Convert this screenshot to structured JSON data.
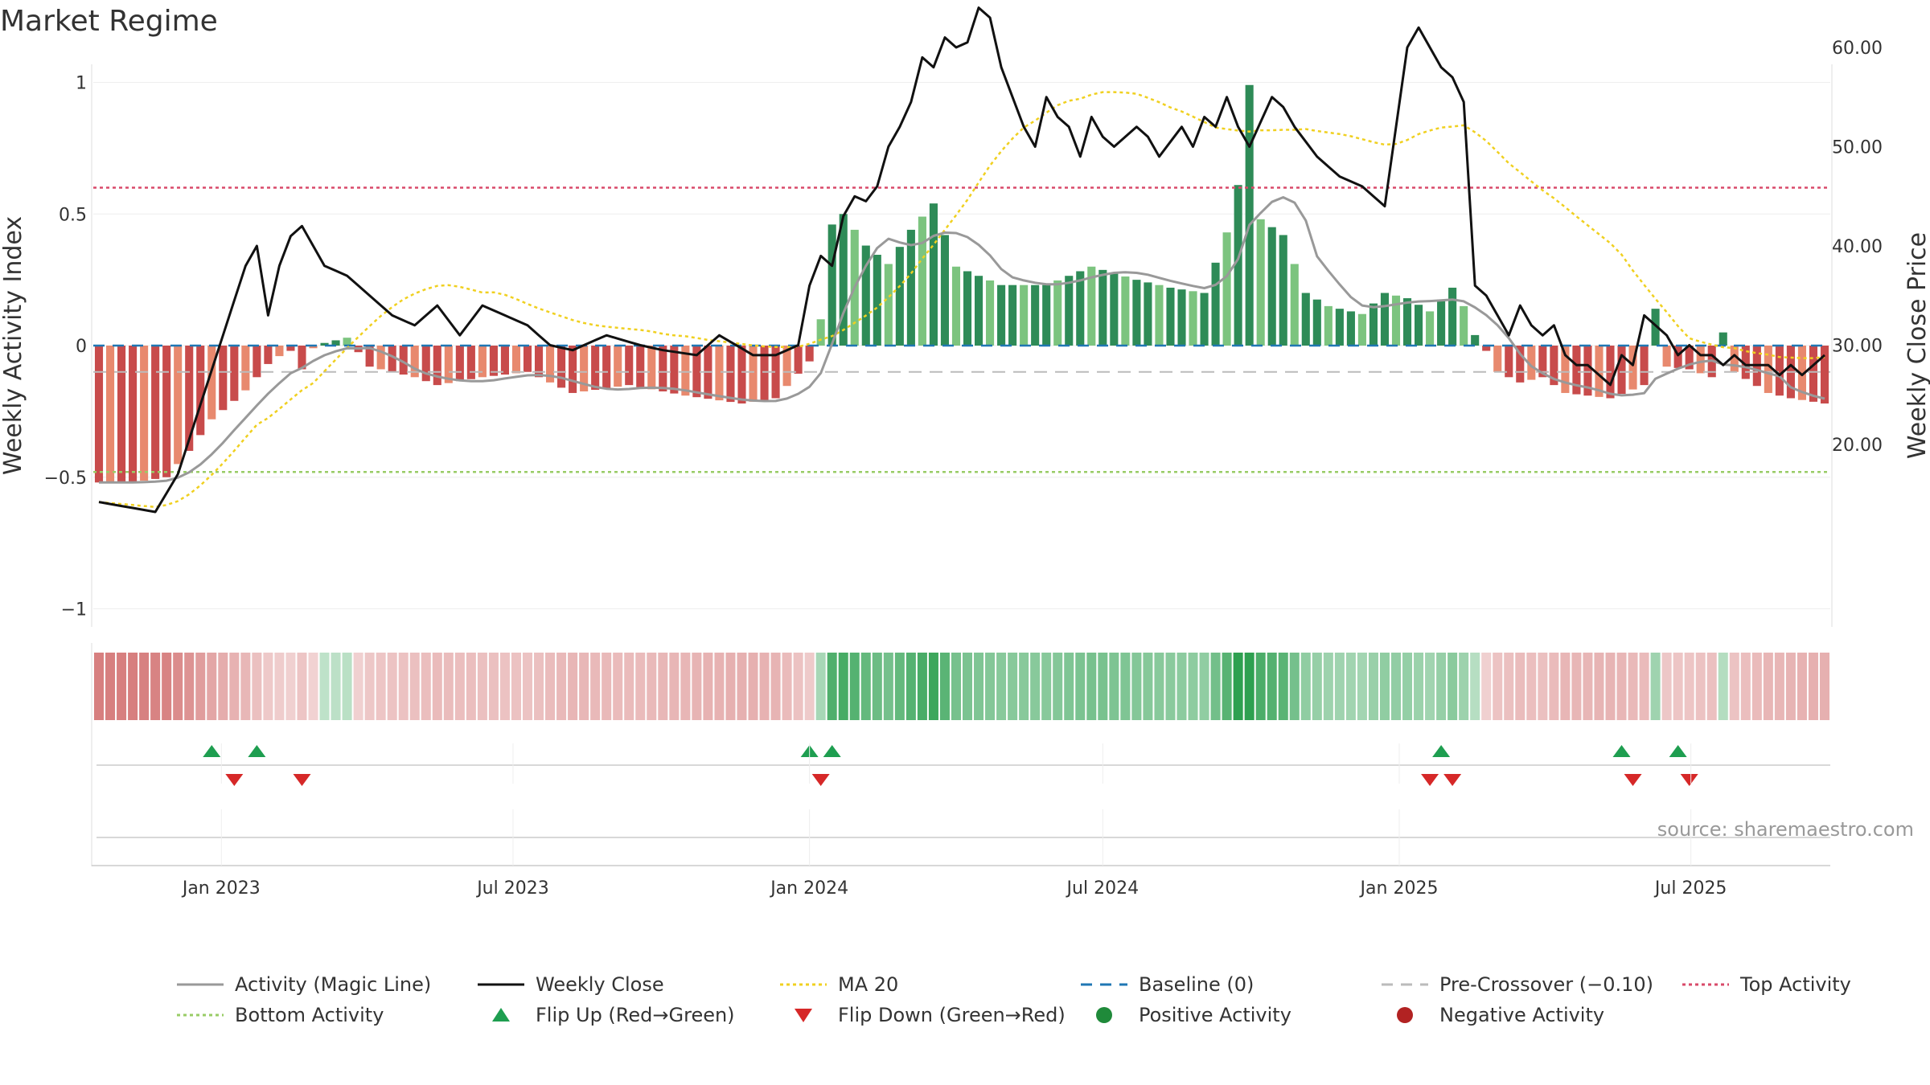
{
  "title": "Market Regime",
  "source": "source: sharemaestro.com",
  "colors": {
    "red_strong": "#c84b4b",
    "red_light": "#e8896e",
    "green_strong": "#2e8b57",
    "green_light": "#7cc47f",
    "magic_line": "#999999",
    "close": "#111111",
    "ma20": "#f0d020",
    "baseline": "#1f77b4",
    "precross": "#bbbbbb",
    "top": "#d94a6a",
    "bottom": "#99cc66",
    "flip_up": "#1e9e50",
    "flip_down": "#d62828"
  },
  "chart_data": {
    "type": "bar",
    "y_left_label": "Weekly Activity Index",
    "y_right_label": "Weekly Close Price",
    "y_left_ticks": [
      "1",
      "0.5",
      "0",
      "−0.5",
      "−1"
    ],
    "y_left_tick_values": [
      1,
      0.5,
      0,
      -0.5,
      -1
    ],
    "y_left_range": [
      -1.07,
      1.07
    ],
    "y_right_ticks": [
      "60.00",
      "50.00",
      "40.00",
      "30.00",
      "20.00"
    ],
    "y_right_tick_values": [
      60,
      50,
      40,
      30,
      20
    ],
    "y_right_range": [
      12.5,
      65.5
    ],
    "x_start": "2022-10-17",
    "x_week_count": 154,
    "x_ticks": [
      "Jan 2023",
      "Jul 2023",
      "Jan 2024",
      "Jul 2024",
      "Jan 2025",
      "Jul 2025"
    ],
    "x_tick_dates": [
      "2023-01-01",
      "2023-07-01",
      "2024-01-01",
      "2024-07-01",
      "2025-01-01",
      "2025-07-01"
    ],
    "reference_lines": {
      "top": 0.6,
      "bottom": -0.48,
      "baseline": 0,
      "pre_crossover": -0.1
    },
    "activity_keypoints": [
      [
        0,
        -0.52
      ],
      [
        3,
        -0.52
      ],
      [
        6,
        -0.5
      ],
      [
        8,
        -0.4
      ],
      [
        10,
        -0.28
      ],
      [
        12,
        -0.21
      ],
      [
        13,
        -0.17
      ],
      [
        14,
        -0.12
      ],
      [
        15,
        -0.07
      ],
      [
        16,
        -0.04
      ],
      [
        17,
        -0.02
      ],
      [
        18,
        -0.09
      ],
      [
        19,
        -0.01
      ],
      [
        20,
        0.01
      ],
      [
        22,
        0.03
      ],
      [
        24,
        -0.08
      ],
      [
        28,
        -0.12
      ],
      [
        30,
        -0.15
      ],
      [
        34,
        -0.12
      ],
      [
        38,
        -0.1
      ],
      [
        42,
        -0.18
      ],
      [
        47,
        -0.15
      ],
      [
        52,
        -0.19
      ],
      [
        57,
        -0.22
      ],
      [
        60,
        -0.2
      ],
      [
        63,
        -0.06
      ],
      [
        64,
        0.1
      ],
      [
        65,
        0.46
      ],
      [
        66,
        0.5
      ],
      [
        68,
        0.38
      ],
      [
        70,
        0.31
      ],
      [
        72,
        0.44
      ],
      [
        74,
        0.54
      ],
      [
        76,
        0.3
      ],
      [
        80,
        0.23
      ],
      [
        84,
        0.23
      ],
      [
        88,
        0.3
      ],
      [
        92,
        0.25
      ],
      [
        95,
        0.22
      ],
      [
        98,
        0.2
      ],
      [
        100,
        0.43
      ],
      [
        101,
        0.61
      ],
      [
        102,
        0.99
      ],
      [
        103,
        0.48
      ],
      [
        105,
        0.42
      ],
      [
        107,
        0.2
      ],
      [
        109,
        0.15
      ],
      [
        112,
        0.12
      ],
      [
        114,
        0.2
      ],
      [
        116,
        0.18
      ],
      [
        118,
        0.13
      ],
      [
        120,
        0.22
      ],
      [
        121,
        0.15
      ],
      [
        122,
        0.04
      ],
      [
        123,
        -0.02
      ],
      [
        124,
        -0.1
      ],
      [
        126,
        -0.14
      ],
      [
        128,
        -0.12
      ],
      [
        130,
        -0.18
      ],
      [
        134,
        -0.2
      ],
      [
        137,
        -0.15
      ],
      [
        138,
        0.14
      ],
      [
        139,
        -0.08
      ],
      [
        141,
        -0.09
      ],
      [
        143,
        -0.12
      ],
      [
        144,
        0.05
      ],
      [
        145,
        -0.1
      ],
      [
        148,
        -0.18
      ],
      [
        150,
        -0.2
      ],
      [
        153,
        -0.22
      ]
    ],
    "flip_up_weeks": [
      10,
      14,
      63,
      65,
      119,
      135,
      140
    ],
    "flip_down_weeks": [
      12,
      18,
      64,
      118,
      120,
      136,
      141
    ],
    "legend": [
      {
        "label": "Activity (Magic Line)",
        "marker": "line",
        "color": "#999999",
        "dash": ""
      },
      {
        "label": "Weekly Close",
        "marker": "line",
        "color": "#111111",
        "dash": ""
      },
      {
        "label": "MA 20",
        "marker": "line",
        "color": "#f0d020",
        "dash": "4,4"
      },
      {
        "label": "Baseline (0)",
        "marker": "line",
        "color": "#1f77b4",
        "dash": "14,10"
      },
      {
        "label": "Pre-Crossover (−0.10)",
        "marker": "line",
        "color": "#bbbbbb",
        "dash": "14,10"
      },
      {
        "label": "Top Activity",
        "marker": "line",
        "color": "#d94a6a",
        "dash": "4,4"
      },
      {
        "label": "Bottom Activity",
        "marker": "line",
        "color": "#99cc66",
        "dash": "4,4"
      },
      {
        "label": "Flip Up (Red→Green)",
        "marker": "tri-up",
        "color": "#1e9e50",
        "dash": ""
      },
      {
        "label": "Flip Down (Green→Red)",
        "marker": "tri-down",
        "color": "#d62828",
        "dash": ""
      },
      {
        "label": "Positive Activity",
        "marker": "circle",
        "color": "#1f8a3a",
        "dash": ""
      },
      {
        "label": "Negative Activity",
        "marker": "circle",
        "color": "#b22222",
        "dash": ""
      }
    ]
  }
}
